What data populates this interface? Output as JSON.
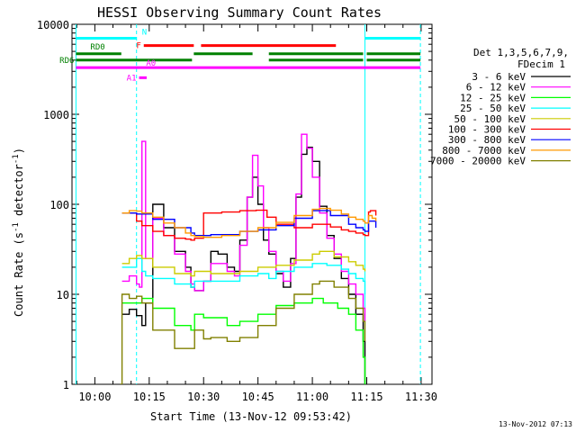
{
  "chart_data": {
    "type": "line",
    "title": "HESSI Observing Summary Count Rates",
    "xlabel": "Start Time (13-Nov-12 09:53:42)",
    "ylabel": "Count Rate (s⁻¹ detector⁻¹)",
    "ylabel_parts": {
      "main": "Count Rate (s",
      "sup1": "-1",
      "mid": " detector",
      "sup2": "-1",
      "end": ")"
    },
    "yscale": "log",
    "ylim": [
      1,
      10000
    ],
    "xlim_minutes": [
      593.7,
      693.0
    ],
    "x_unit": "time of day (minutes after 00:00 UT)",
    "x_ticks": [
      {
        "label": "10:00",
        "min": 600
      },
      {
        "label": "10:15",
        "min": 615
      },
      {
        "label": "10:30",
        "min": 630
      },
      {
        "label": "10:45",
        "min": 645
      },
      {
        "label": "11:00",
        "min": 660
      },
      {
        "label": "11:15",
        "min": 675
      },
      {
        "label": "11:30",
        "min": 690
      }
    ],
    "y_ticks": [
      {
        "label": "1",
        "v": 1
      },
      {
        "label": "10",
        "v": 10
      },
      {
        "label": "100",
        "v": 100
      },
      {
        "label": "1000",
        "v": 1000
      },
      {
        "label": "10000",
        "v": 10000
      }
    ],
    "legend_header": [
      "Det 1,3,5,6,7,9,",
      "FDecim 1"
    ],
    "legend_position": "right",
    "timestamp": "13-Nov-2012 07:13",
    "series": [
      {
        "name": "3 - 6 keV",
        "color": "#000000",
        "x": [
          607.5,
          609.5,
          611.5,
          613,
          614,
          616,
          619,
          622,
          625,
          626.5,
          627.5,
          630,
          632,
          634,
          636.5,
          638.5,
          640,
          642,
          643.5,
          645,
          646.5,
          648,
          650,
          652,
          654,
          655.5,
          657,
          658.5,
          660,
          662,
          664,
          666,
          668,
          670,
          672,
          674,
          674.5
        ],
        "y": [
          6,
          6.8,
          5.8,
          4.5,
          8,
          100,
          55,
          30,
          20,
          12,
          11,
          14,
          30,
          28,
          20,
          18,
          40,
          120,
          200,
          100,
          40,
          28,
          17,
          12,
          25,
          120,
          360,
          430,
          300,
          95,
          45,
          25,
          15,
          10,
          6,
          3,
          1
        ]
      },
      {
        "name": "6 - 12 keV",
        "color": "#ff00ff",
        "x": [
          607.5,
          609.5,
          611.5,
          612.3,
          613,
          614,
          616,
          619,
          622,
          625,
          626.5,
          627.5,
          630,
          632,
          634,
          636.5,
          638.5,
          640,
          642,
          643.5,
          645,
          646.5,
          648,
          650,
          652,
          654,
          655.5,
          657,
          658.5,
          660,
          662,
          664,
          666,
          668,
          670,
          672,
          674,
          674.5
        ],
        "y": [
          14,
          16,
          13,
          12,
          500,
          25,
          70,
          45,
          28,
          18,
          13,
          11,
          14,
          22,
          22,
          18,
          16,
          35,
          120,
          350,
          160,
          55,
          30,
          18,
          14,
          22,
          130,
          600,
          420,
          200,
          80,
          42,
          28,
          18,
          13,
          10,
          7,
          5
        ]
      },
      {
        "name": "12 - 25 keV",
        "color": "#00ff00",
        "x": [
          607.5,
          611.5,
          613,
          616,
          622,
          626.5,
          627.5,
          630,
          636.5,
          640,
          645,
          650,
          655,
          660,
          663,
          667,
          670,
          672,
          674,
          674.5
        ],
        "y": [
          8,
          8,
          9,
          7,
          4.5,
          4,
          6,
          5.5,
          4.5,
          5,
          6,
          7.5,
          8,
          9,
          8,
          7,
          6,
          4,
          2,
          1
        ]
      },
      {
        "name": "25 - 50 keV",
        "color": "#00ffff",
        "x": [
          607.5,
          611.5,
          613,
          614,
          616,
          622,
          626.5,
          627.5,
          632,
          640,
          645,
          648,
          650,
          655,
          660,
          664,
          668,
          670,
          672,
          674,
          674.5
        ],
        "y": [
          20,
          25,
          18,
          16,
          15,
          13,
          12,
          14,
          14,
          16,
          17,
          15,
          18,
          20,
          22,
          21,
          19,
          17,
          15,
          14,
          10
        ]
      },
      {
        "name": "50 - 100 keV",
        "color": "#cccc00",
        "x": [
          607.5,
          609.5,
          611.5,
          613,
          616,
          622,
          626.5,
          627.5,
          632,
          640,
          645,
          650,
          655,
          660,
          662,
          666,
          670,
          672,
          674,
          674.5
        ],
        "y": [
          22,
          25,
          27,
          25,
          20,
          17,
          16,
          18,
          17,
          18,
          20,
          21,
          24,
          28,
          30,
          26,
          23,
          21,
          19,
          18
        ]
      },
      {
        "name": "100 - 300 keV",
        "color": "#ff0000",
        "x": [
          607.5,
          609.5,
          611.5,
          613,
          616,
          619,
          622,
          625,
          626.5,
          627.5,
          630,
          635,
          640,
          642,
          644.5,
          647.5,
          650,
          655,
          660,
          665,
          668,
          670,
          672,
          674,
          674.5,
          675.5,
          676,
          677.5
        ],
        "y": [
          80,
          80,
          65,
          58,
          50,
          45,
          42,
          41,
          40,
          42,
          80,
          82,
          85,
          85,
          86,
          72,
          60,
          55,
          60,
          56,
          52,
          50,
          48,
          46,
          45,
          82,
          85,
          75
        ]
      },
      {
        "name": "300 - 800 keV",
        "color": "#0000ff",
        "x": [
          607.5,
          611.5,
          616,
          622,
          626.5,
          627.5,
          632,
          640,
          645,
          650,
          655,
          660,
          665,
          670,
          672,
          674,
          674.5,
          675.5,
          677.5
        ],
        "y": [
          80,
          78,
          68,
          55,
          48,
          45,
          46,
          50,
          52,
          58,
          70,
          85,
          75,
          60,
          55,
          52,
          50,
          65,
          55
        ]
      },
      {
        "name": "800 - 7000 keV",
        "color": "#ff9900",
        "x": [
          607.5,
          609.5,
          611.5,
          613,
          616,
          619,
          622,
          625,
          626.5,
          627.5,
          630,
          635,
          640,
          645,
          650,
          655,
          660,
          662,
          665,
          668,
          670,
          672,
          674,
          674.5,
          675.5,
          676.5,
          677.5
        ],
        "y": [
          80,
          85,
          84,
          80,
          72,
          62,
          55,
          48,
          45,
          44,
          43,
          45,
          50,
          55,
          63,
          75,
          88,
          90,
          86,
          78,
          72,
          68,
          65,
          62,
          75,
          70,
          65
        ]
      },
      {
        "name": "7000 - 20000 keV",
        "color": "#808000",
        "x": [
          607,
          607.5,
          609.5,
          611.5,
          613,
          616,
          622,
          626.5,
          627.5,
          630,
          632,
          636.5,
          640,
          645,
          650,
          655,
          660,
          662,
          666,
          670,
          672,
          674,
          674.5
        ],
        "y": [
          1,
          10,
          9,
          9.5,
          8,
          4,
          2.5,
          2.5,
          4,
          3.2,
          3.3,
          3,
          3.3,
          4.5,
          7,
          10,
          13,
          14,
          12,
          9,
          7,
          5,
          3
        ]
      }
    ],
    "vertical_markers": [
      {
        "min": 594.8,
        "style": "solid",
        "color": "#00ffff"
      },
      {
        "min": 611.5,
        "style": "dashed",
        "color": "#00ffff"
      },
      {
        "min": 674.5,
        "style": "solid",
        "color": "#00ffff"
      },
      {
        "min": 689.8,
        "style": "dashed",
        "color": "#00ffff"
      }
    ],
    "flag_bars": [
      {
        "label": "N",
        "color": "#00ffff",
        "segments": [
          [
            594.8,
            611.5
          ],
          [
            674.5,
            689.8
          ]
        ],
        "v": 7000
      },
      {
        "label": "F",
        "color": "#ff0000",
        "segments": [
          [
            613.5,
            627.3
          ],
          [
            629.3,
            666.5
          ]
        ],
        "v": 5800
      },
      {
        "label": "RD0",
        "color": "#008000",
        "segments": [
          [
            594.8,
            607.3
          ],
          [
            627.3,
            643.5
          ],
          [
            648,
            674
          ],
          [
            675,
            689.8
          ]
        ],
        "v": 4700
      },
      {
        "label": "RD6",
        "color": "#008000",
        "segments": [
          [
            594.8,
            626.8
          ],
          [
            648,
            674
          ],
          [
            675,
            689.8
          ]
        ],
        "v": 4000
      },
      {
        "label": "A0",
        "color": "#ff00ff",
        "segments": [
          [
            594.8,
            689.8
          ]
        ],
        "v": 3300
      },
      {
        "label": "A1",
        "color": "#ff00ff",
        "segments": [
          [
            612.2,
            614.3
          ]
        ],
        "v": 2550
      }
    ]
  }
}
